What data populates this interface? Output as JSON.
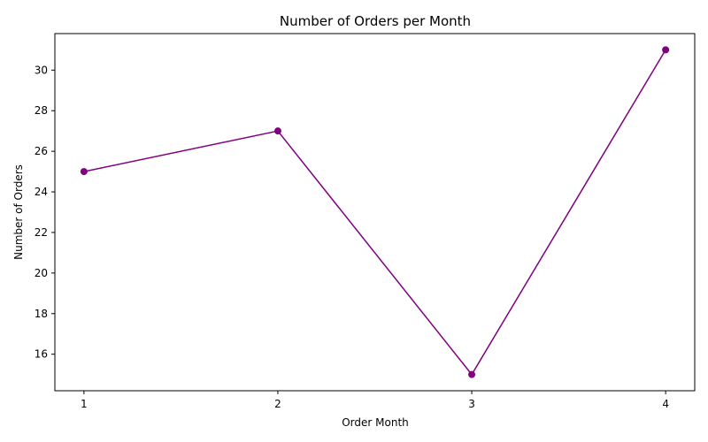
{
  "chart_data": {
    "type": "line",
    "title": "Number of Orders per Month",
    "xlabel": "Order Month",
    "ylabel": "Number of Orders",
    "x": [
      1,
      2,
      3,
      4
    ],
    "series": [
      {
        "values": [
          25,
          27,
          15,
          31
        ],
        "color": "#800080",
        "marker": "circle"
      }
    ],
    "xticks": [
      "1",
      "2",
      "3",
      "4"
    ],
    "yticks": [
      16,
      18,
      20,
      22,
      24,
      26,
      28,
      30
    ],
    "xlim": [
      0.85,
      4.15
    ],
    "ylim": [
      14.2,
      31.8
    ],
    "grid": false,
    "legend": "none"
  }
}
